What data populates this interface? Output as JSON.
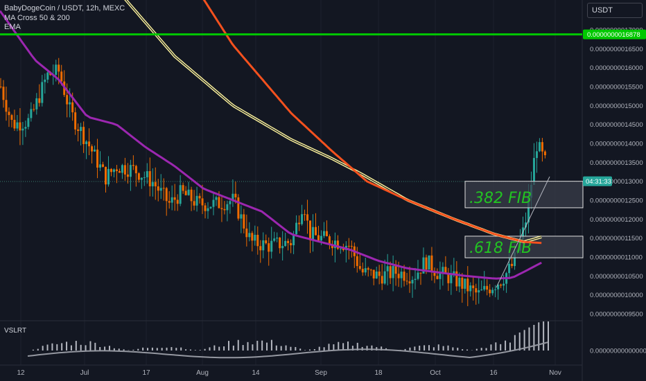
{
  "legend": {
    "symbol": "BabyDogeCoin / USDT, 12h, MEXC",
    "indicator1": "MA Cross 50 & 200",
    "indicator2": "EMA"
  },
  "currency_selector": "USDT",
  "lower_pane": {
    "label": "VSLRT",
    "price_tag": "0.00000000000000"
  },
  "colors": {
    "background": "#131722",
    "up_candle": "#26a69a",
    "down_candle": "#ef6c00",
    "ma_fast": "#9c27b0",
    "ma_slow_fill": "#fff59d",
    "ema": "#f4511e",
    "resistance": "#00c800",
    "fib_box": "#3a3e4a"
  },
  "chart_data": {
    "type": "candlestick",
    "x_tick_labels": [
      "12",
      "Jul",
      "17",
      "Aug",
      "14",
      "Sep",
      "18",
      "Oct",
      "16",
      "Nov"
    ],
    "y_tick_labels": [
      "0.0000000017000",
      "0.0000000016500",
      "0.0000000016000",
      "0.0000000015500",
      "0.0000000015000",
      "0.0000000014500",
      "0.0000000014000",
      "0.0000000013500",
      "0.0000000013000",
      "0.0000000012500",
      "0.0000000012000",
      "0.0000000011500",
      "0.0000000011000",
      "0.0000000010500",
      "0.0000000010000",
      "0.0000000009500"
    ],
    "ylim": [
      9.3e-10,
      1.735e-09
    ],
    "resistance_line": {
      "value": 1.6878e-09,
      "label": "0.0000000016878"
    },
    "current_price_tag": "04:31:33",
    "current_price": 1.3e-09,
    "fib_levels": [
      {
        "label": ".382 FIB",
        "top": 1.3e-09,
        "bottom": 1.23e-09
      },
      {
        "label": ".618 FIB",
        "top": 1.155e-09,
        "bottom": 1.098e-09
      }
    ],
    "ma_fast_anchors": [
      [
        0,
        1.75e-09
      ],
      [
        0.06,
        1.62e-09
      ],
      [
        0.1,
        1.57e-09
      ],
      [
        0.15,
        1.47e-09
      ],
      [
        0.2,
        1.45e-09
      ],
      [
        0.25,
        1.39e-09
      ],
      [
        0.3,
        1.34e-09
      ],
      [
        0.35,
        1.28e-09
      ],
      [
        0.4,
        1.25e-09
      ],
      [
        0.45,
        1.22e-09
      ],
      [
        0.5,
        1.16e-09
      ],
      [
        0.55,
        1.14e-09
      ],
      [
        0.6,
        1.12e-09
      ],
      [
        0.65,
        1.09e-09
      ],
      [
        0.7,
        1.07e-09
      ],
      [
        0.75,
        1.06e-09
      ],
      [
        0.8,
        1.05e-09
      ],
      [
        0.85,
        1.043e-09
      ],
      [
        0.88,
        1.045e-09
      ],
      [
        0.93,
        1.085e-09
      ]
    ],
    "ma_slow_anchors": [
      [
        0.21,
        1.79e-09
      ],
      [
        0.3,
        1.63e-09
      ],
      [
        0.4,
        1.5e-09
      ],
      [
        0.5,
        1.41e-09
      ],
      [
        0.57,
        1.36e-09
      ],
      [
        0.62,
        1.32e-09
      ],
      [
        0.7,
        1.25e-09
      ],
      [
        0.78,
        1.2e-09
      ],
      [
        0.85,
        1.16e-09
      ],
      [
        0.9,
        1.14e-09
      ],
      [
        0.93,
        1.153e-09
      ]
    ],
    "ema_anchors": [
      [
        0.35,
        1.78e-09
      ],
      [
        0.4,
        1.66e-09
      ],
      [
        0.5,
        1.48e-09
      ],
      [
        0.57,
        1.38e-09
      ],
      [
        0.63,
        1.3e-09
      ],
      [
        0.7,
        1.25e-09
      ],
      [
        0.78,
        1.2e-09
      ],
      [
        0.85,
        1.16e-09
      ],
      [
        0.9,
        1.14e-09
      ],
      [
        0.93,
        1.137e-09
      ]
    ],
    "close_anchors": [
      [
        0,
        1.55e-09
      ],
      [
        0.02,
        1.45e-09
      ],
      [
        0.05,
        1.46e-09
      ],
      [
        0.08,
        1.58e-09
      ],
      [
        0.1,
        1.59e-09
      ],
      [
        0.12,
        1.48e-09
      ],
      [
        0.15,
        1.4e-09
      ],
      [
        0.18,
        1.31e-09
      ],
      [
        0.2,
        1.34e-09
      ],
      [
        0.23,
        1.33e-09
      ],
      [
        0.26,
        1.3e-09
      ],
      [
        0.29,
        1.24e-09
      ],
      [
        0.31,
        1.27e-09
      ],
      [
        0.34,
        1.24e-09
      ],
      [
        0.37,
        1.24e-09
      ],
      [
        0.4,
        1.25e-09
      ],
      [
        0.43,
        1.14e-09
      ],
      [
        0.46,
        1.13e-09
      ],
      [
        0.5,
        1.14e-09
      ],
      [
        0.52,
        1.25e-09
      ],
      [
        0.53,
        1.16e-09
      ],
      [
        0.55,
        1.15e-09
      ],
      [
        0.58,
        1.14e-09
      ],
      [
        0.6,
        1.13e-09
      ],
      [
        0.62,
        1.06e-09
      ],
      [
        0.65,
        1.05e-09
      ],
      [
        0.68,
        1.06e-09
      ],
      [
        0.71,
        1.05e-09
      ],
      [
        0.73,
        1.09e-09
      ],
      [
        0.75,
        1.06e-09
      ],
      [
        0.78,
        1.04e-09
      ],
      [
        0.8,
        1.02e-09
      ],
      [
        0.82,
        1e-09
      ],
      [
        0.84,
        1.02e-09
      ],
      [
        0.86,
        1.04e-09
      ],
      [
        0.88,
        1.08e-09
      ],
      [
        0.9,
        1.18e-09
      ],
      [
        0.91,
        1.28e-09
      ],
      [
        0.92,
        1.4e-09
      ],
      [
        0.935,
        1.35e-09
      ]
    ]
  }
}
